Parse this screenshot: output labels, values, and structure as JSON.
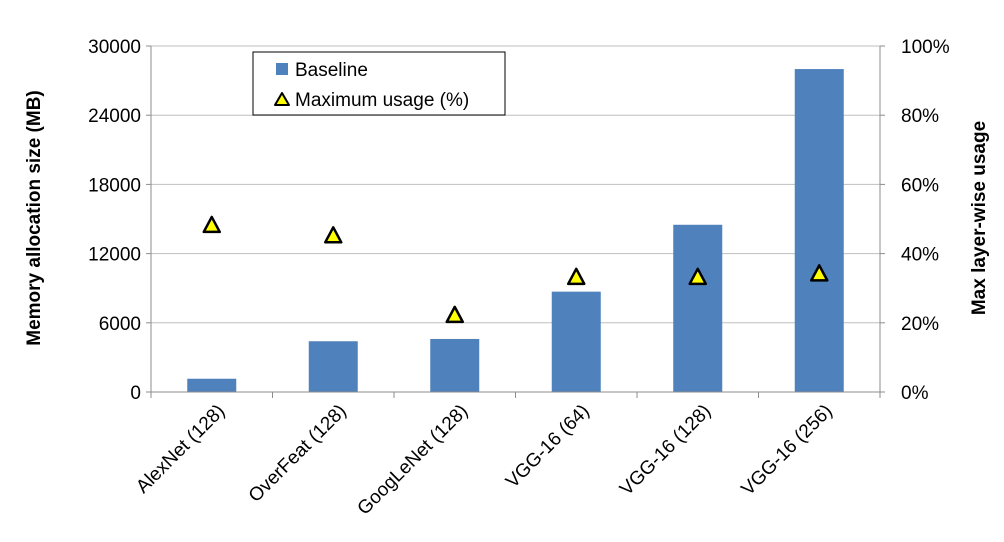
{
  "chart_data": {
    "type": "bar",
    "categories": [
      "AlexNet  (128)",
      "OverFeat (128)",
      "GoogLeNet (128)",
      "VGG-16 (64)",
      "VGG-16 (128)",
      "VGG-16 (256)"
    ],
    "series": [
      {
        "name": "Baseline",
        "type": "bar",
        "axis": "left",
        "color": "#4f81bd",
        "values": [
          1150,
          4400,
          4600,
          8700,
          14500,
          28000
        ]
      },
      {
        "name": "Maximum usage (%)",
        "type": "scatter",
        "axis": "right",
        "marker": "triangle",
        "color": "#ffff00",
        "values": [
          48,
          45,
          22,
          33,
          33,
          34
        ]
      }
    ],
    "ylabel": "Memory allocation size  (MB)",
    "ylabel_right": "Max layer-wise usage",
    "ylim": [
      0,
      30000
    ],
    "ylim_right": [
      0,
      100
    ],
    "yticks": [
      "0",
      "6000",
      "12000",
      "18000",
      "24000",
      "30000"
    ],
    "yticks_right": [
      "0%",
      "20%",
      "40%",
      "60%",
      "80%",
      "100%"
    ],
    "grid": true,
    "legend_position": "top-left"
  }
}
